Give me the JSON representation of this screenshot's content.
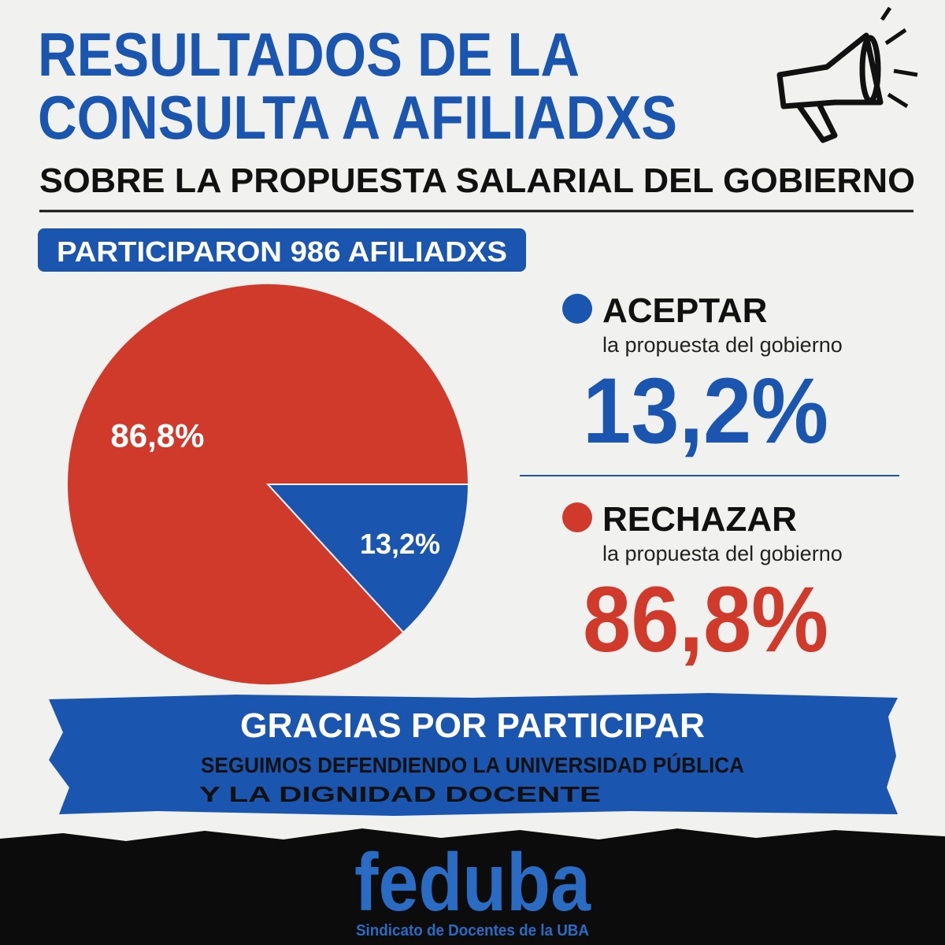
{
  "header": {
    "title_line1": "RESULTADOS DE LA",
    "title_line2": "CONSULTA A AFILIADXS",
    "subtitle": "SOBRE LA PROPUESTA SALARIAL DEL GOBIERNO"
  },
  "participants_badge": "PARTICIPARON 986 AFILIADXS",
  "chart_data": {
    "type": "pie",
    "categories": [
      "ACEPTAR",
      "RECHAZAR"
    ],
    "category_subtitles": [
      "la propuesta del gobierno",
      "la propuesta del gobierno"
    ],
    "values": [
      13.2,
      86.8
    ],
    "value_labels": [
      "13,2%",
      "86,8%"
    ],
    "colors": [
      "#1a56b0",
      "#d03a2b"
    ]
  },
  "footer_banner": {
    "title": "GRACIAS POR PARTICIPAR",
    "line1": "SEGUIMOS DEFENDIENDO LA UNIVERSIDAD PÚBLICA",
    "line2": "Y LA DIGNIDAD DOCENTE"
  },
  "logo": {
    "name": "feduba",
    "tagline": "Sindicato de Docentes de la UBA"
  }
}
